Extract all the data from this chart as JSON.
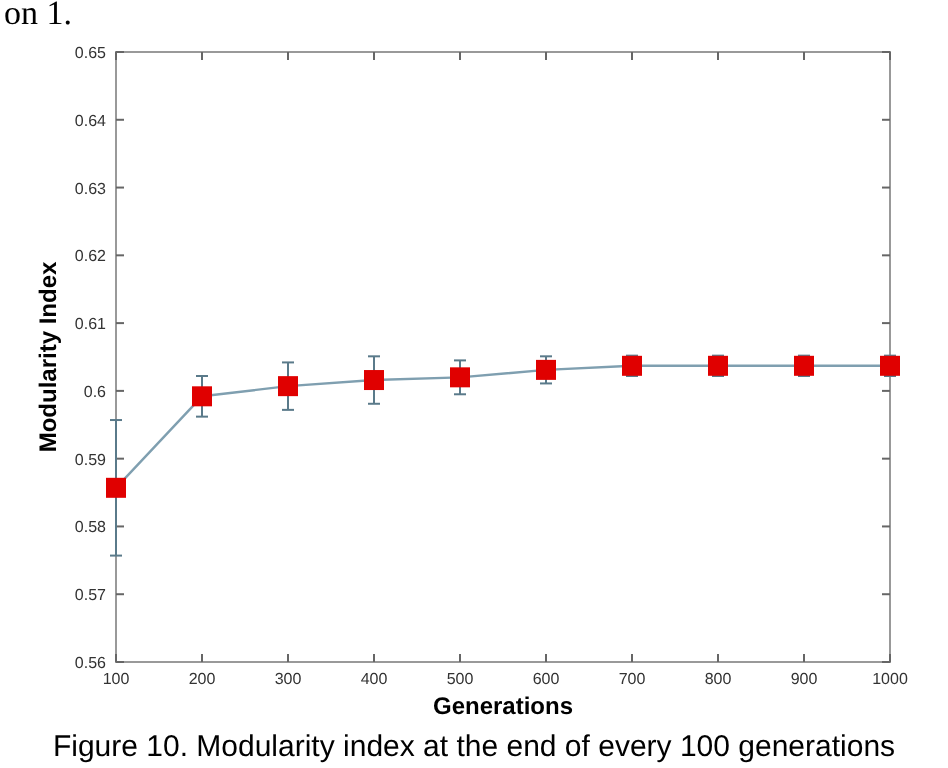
{
  "chart_data": {
    "type": "line",
    "xlabel": "Generations",
    "ylabel": "Modularity Index",
    "annotations": [
      "on 1.",
      "Figure 10.  Modularity index at the end of every 100 generations"
    ],
    "x": [
      100,
      200,
      300,
      400,
      500,
      600,
      700,
      800,
      900,
      1000
    ],
    "series": [
      {
        "color": "#7f9fb0",
        "values": [
          0.5857,
          0.5992,
          0.6007,
          0.6016,
          0.602,
          0.6031,
          0.6037,
          0.6037,
          0.6037,
          0.6037
        ],
        "errors": [
          0.01,
          0.003,
          0.0035,
          0.0035,
          0.0025,
          0.002,
          0.0015,
          0.0015,
          0.0015,
          0.0015
        ],
        "colors": [
          "#e00000",
          "#e00000",
          "#e00000",
          "#e00000",
          "#e00000",
          "#e00000",
          "#e00000",
          "#e00000",
          "#e00000",
          "#e00000"
        ]
      }
    ],
    "marker": "square",
    "grid": false,
    "xlim": [
      100,
      1000
    ],
    "xticks": [
      100,
      200,
      300,
      400,
      500,
      600,
      700,
      800,
      900,
      1000
    ],
    "ylim": [
      0.56,
      0.65
    ],
    "yticks": [
      0.56,
      0.57,
      0.58,
      0.59,
      0.6,
      0.61,
      0.62,
      0.63,
      0.64,
      0.65
    ]
  }
}
